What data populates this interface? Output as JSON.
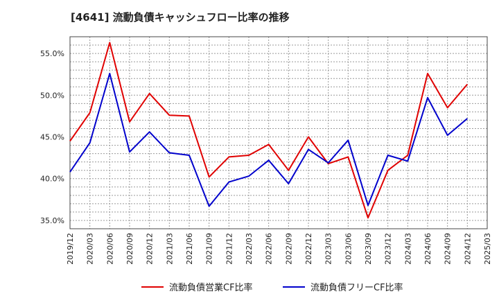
{
  "chart_data": {
    "type": "line",
    "title": "[4641]  流動負債キャッシュフロー比率の推移",
    "x": [
      "2019/12",
      "2020/03",
      "2020/06",
      "2020/09",
      "2020/12",
      "2021/03",
      "2021/06",
      "2021/09",
      "2021/12",
      "2022/03",
      "2022/06",
      "2022/09",
      "2022/12",
      "2023/03",
      "2023/06",
      "2023/09",
      "2023/12",
      "2024/03",
      "2024/06",
      "2024/09",
      "2024/12"
    ],
    "x_ticks": [
      "2019/12",
      "2020/03",
      "2020/06",
      "2020/09",
      "2020/12",
      "2021/03",
      "2021/06",
      "2021/09",
      "2021/12",
      "2022/03",
      "2022/06",
      "2022/09",
      "2022/12",
      "2023/03",
      "2023/06",
      "2023/09",
      "2023/12",
      "2024/03",
      "2024/06",
      "2024/09",
      "2024/12",
      "2025/03"
    ],
    "y_ticks": [
      "35.0%",
      "40.0%",
      "45.0%",
      "50.0%",
      "55.0%"
    ],
    "ylim": [
      34,
      57
    ],
    "series": [
      {
        "name": "流動負債営業CF比率",
        "color": "#e00000",
        "values": [
          44.5,
          47.9,
          56.3,
          46.8,
          50.2,
          47.6,
          47.5,
          40.2,
          42.6,
          42.8,
          44.1,
          41.0,
          45.0,
          41.8,
          42.6,
          35.3,
          41.0,
          42.8,
          52.6,
          48.5,
          51.3
        ]
      },
      {
        "name": "流動負債フリーCF比率",
        "color": "#0000cc",
        "values": [
          40.8,
          44.3,
          52.6,
          43.2,
          45.6,
          43.1,
          42.8,
          36.7,
          39.6,
          40.3,
          42.2,
          39.4,
          43.5,
          41.9,
          44.6,
          36.8,
          42.8,
          42.1,
          49.7,
          45.2,
          47.2
        ]
      }
    ],
    "grid": true,
    "legend": "bottom"
  }
}
